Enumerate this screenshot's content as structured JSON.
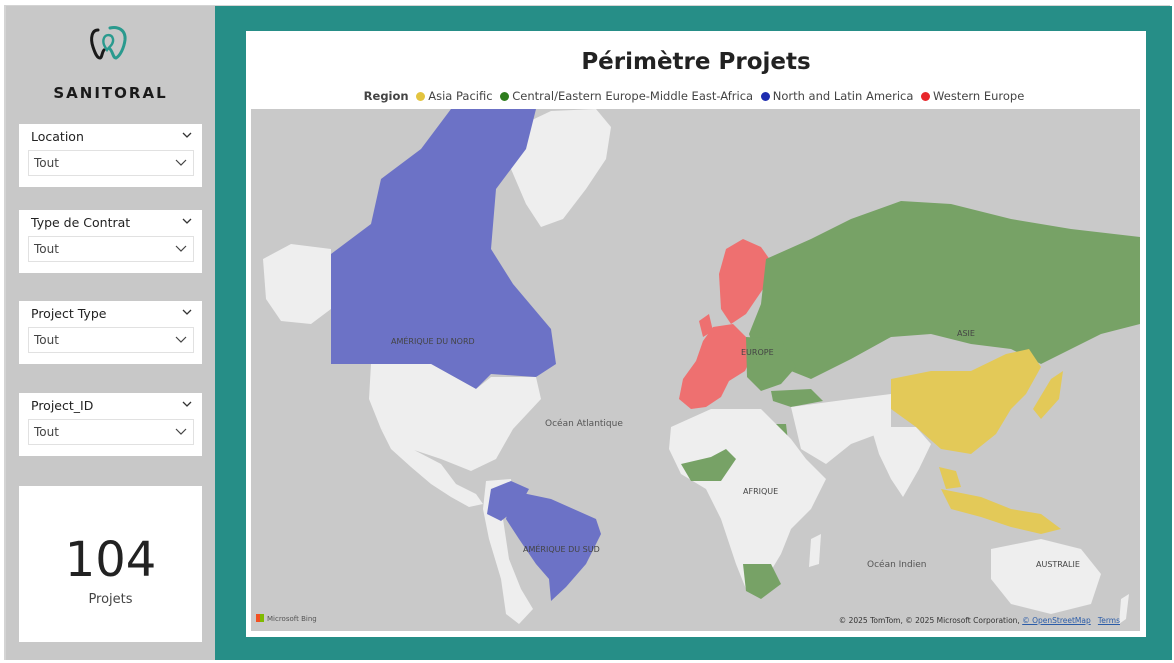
{
  "brand": {
    "name": "SANITORAL"
  },
  "slicers": [
    {
      "title": "Location",
      "value": "Tout"
    },
    {
      "title": "Type de Contrat",
      "value": "Tout"
    },
    {
      "title": "Project Type",
      "value": "Tout"
    },
    {
      "title": "Project_ID",
      "value": "Tout"
    }
  ],
  "kpi": {
    "value": "104",
    "label": "Projets"
  },
  "map": {
    "title": "Périmètre Projets",
    "legend_title": "Region",
    "legend": [
      {
        "label": "Asia Pacific",
        "color": "#e3c43f"
      },
      {
        "label": "Central/Eastern Europe-Middle East-Africa",
        "color": "#2e7d1e"
      },
      {
        "label": "North and Latin America",
        "color": "#1e2db0"
      },
      {
        "label": "Western Europe",
        "color": "#e8272b"
      }
    ],
    "labels": {
      "north_america": "AMÉRIQUE DU NORD",
      "south_america": "AMÉRIQUE DU SUD",
      "europe": "EUROPE",
      "asia": "ASIE",
      "africa": "AFRIQUE",
      "australia": "AUSTRALIE",
      "atlantic": "Océan Atlantique",
      "indian": "Océan Indien"
    },
    "provider": "Microsoft Bing",
    "copyright": "© 2025 TomTom, © 2025 Microsoft Corporation,",
    "osm_link": "© OpenStreetMap",
    "terms_link": "Terms",
    "fill_colors": {
      "north_latin_america": "#6c72c6",
      "western_europe": "#ee7070",
      "ceemea": "#77a266",
      "asia_pacific": "#e3c958",
      "land_other": "#eeeeee",
      "ocean": "#c9c9c9"
    }
  }
}
